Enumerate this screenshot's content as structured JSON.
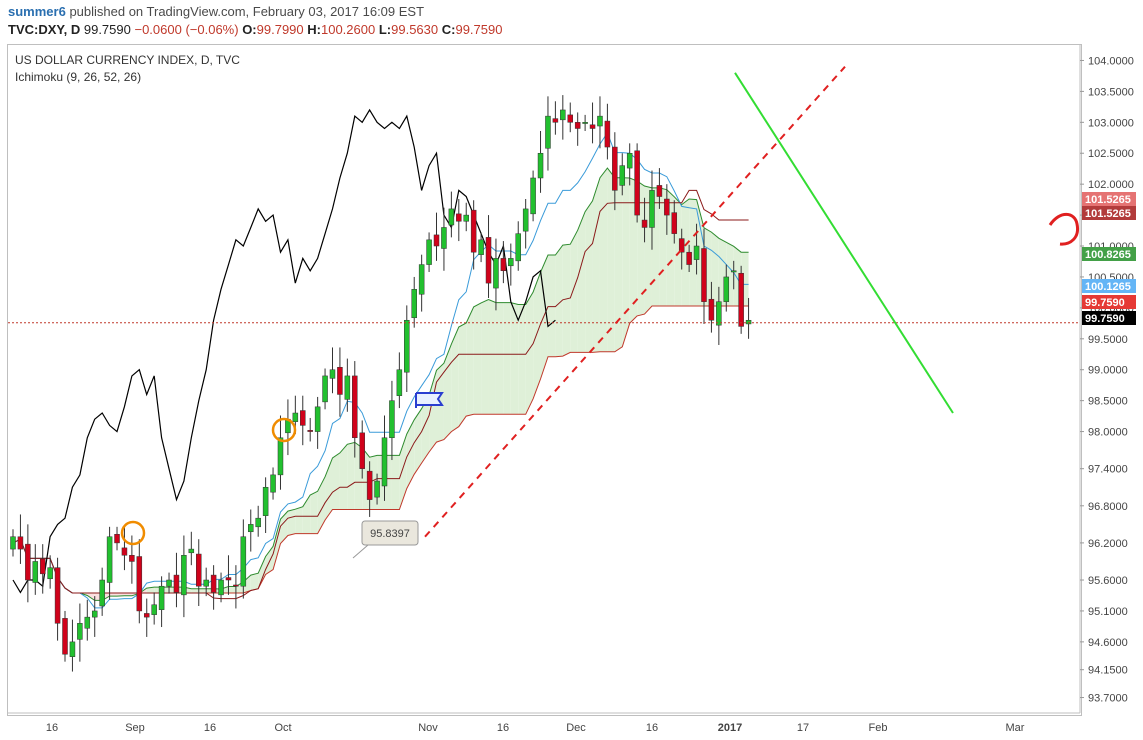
{
  "header": {
    "author": "summer6",
    "published": "published on TradingView.com, February 03, 2017 16:09 EST",
    "symbol": "TVC:DXY, D",
    "price": "99.7590",
    "change": "−0.0600 (−0.06%)",
    "o_label": "O:",
    "o_value": "99.7990",
    "h_label": "H:",
    "h_value": "100.2600",
    "l_label": "L:",
    "l_value": "99.5630",
    "c_label": "C:",
    "c_value": "99.7590"
  },
  "legend": {
    "title": "US DOLLAR CURRENCY INDEX, D, TVC",
    "indicator": "Ichimoku (9, 26, 52, 26)"
  },
  "colors": {
    "up": "#22c02f",
    "down": "#d0021b",
    "tenkan": "#3a9bd9",
    "kijun": "#8b1a1a",
    "span_a": "#2e8b2e",
    "span_b": "#c0392b",
    "chikou": "#000000",
    "cloud_bull": "#dff0d8",
    "cloud_bear": "#fbe0e0",
    "trend_green": "#33dd33"
  },
  "chart_data": {
    "type": "candlestick",
    "title": "US DOLLAR CURRENCY INDEX, D, TVC",
    "y_axis": {
      "range": [
        93.45,
        104.25
      ],
      "ticks": [
        "104.0000",
        "103.5000",
        "103.0000",
        "102.5000",
        "102.0000",
        "101.5000",
        "101.0000",
        "100.5000",
        "100.0000",
        "99.5000",
        "99.0000",
        "98.5000",
        "98.0000",
        "97.4000",
        "96.8000",
        "96.2000",
        "95.6000",
        "95.1000",
        "94.6000",
        "94.1500",
        "93.7000"
      ]
    },
    "x_axis": {
      "labels": [
        "16",
        "Sep",
        "16",
        "Oct",
        "Nov",
        "16",
        "Dec",
        "16",
        "2017",
        "17",
        "Feb",
        "Mar"
      ]
    },
    "price_labels": [
      {
        "value": "101.5265",
        "color": "#e57373"
      },
      {
        "value": "101.5265",
        "color": "#b23b3b"
      },
      {
        "value": "100.8265",
        "color": "#43a047"
      },
      {
        "value": "100.1265",
        "color": "#64b5f6"
      },
      {
        "value": "99.7590",
        "color": "#e53935"
      },
      {
        "value": "99.7590",
        "color": "#000000"
      }
    ],
    "annotations": [
      {
        "type": "callout",
        "text": "95.8397"
      }
    ],
    "series": [
      {
        "type": "candles",
        "closes": [
          96.3,
          96.1,
          95.6,
          95.9,
          95.7,
          95.8,
          94.9,
          94.4,
          94.6,
          94.9,
          95.0,
          95.1,
          95.6,
          96.3,
          96.2,
          96.0,
          95.9,
          95.1,
          95.0,
          95.2,
          95.5,
          95.6,
          95.4,
          96.0,
          96.1,
          95.5,
          95.6,
          95.4,
          95.6,
          95.6,
          95.5,
          96.3,
          96.5,
          96.6,
          97.1,
          97.3,
          97.9,
          98.2,
          98.3,
          98.1,
          98.0,
          98.4,
          98.9,
          99.0,
          98.6,
          98.9,
          97.9,
          97.4,
          96.9,
          97.2,
          97.9,
          98.5,
          99.0,
          99.8,
          100.3,
          100.7,
          101.1,
          101.0,
          101.3,
          101.6,
          101.4,
          101.5,
          100.9,
          101.1,
          100.4,
          100.8,
          100.6,
          100.8,
          101.2,
          101.6,
          102.1,
          102.5,
          103.1,
          103.0,
          103.2,
          103.0,
          102.9,
          103.0,
          102.9,
          103.1,
          102.6,
          101.9,
          102.3,
          102.5,
          101.5,
          101.3,
          101.9,
          101.8,
          101.5,
          101.2,
          100.9,
          100.7,
          101.0,
          100.1,
          99.8,
          100.1,
          100.5,
          100.6,
          99.7,
          99.8
        ],
        "up_color": "#22c02f",
        "down_color": "#d0021b"
      }
    ],
    "lines": [
      {
        "name": "trend-red-dashed",
        "from": [
          "Nov",
          "96.3"
        ],
        "to": [
          "2017",
          "103.9"
        ]
      },
      {
        "name": "trend-green",
        "from": [
          "2017",
          "103.8"
        ],
        "to": [
          "Feb",
          "98.3"
        ]
      },
      {
        "name": "close-level",
        "value": "99.7590"
      }
    ],
    "grid": false
  }
}
